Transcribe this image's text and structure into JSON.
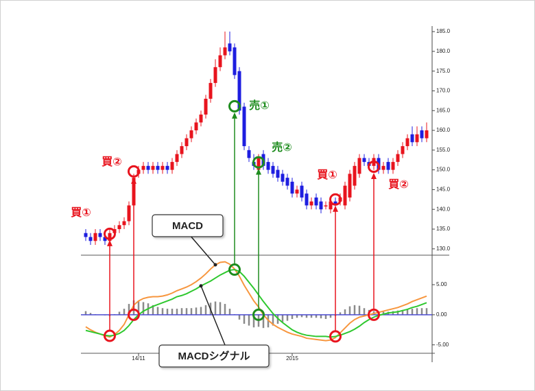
{
  "chart_data": [
    {
      "type": "candlestick",
      "up_color": "#e8141e",
      "down_color": "#1e1ee0",
      "open": [
        134,
        133,
        132,
        134,
        133,
        132,
        134,
        135,
        136,
        137,
        141,
        149,
        150,
        151,
        150,
        151,
        150,
        151,
        150,
        152,
        154,
        156,
        158,
        160,
        162,
        164,
        168,
        172,
        176,
        179,
        182,
        181,
        175,
        166,
        155,
        152,
        150,
        154,
        152,
        151,
        150,
        149,
        148,
        147,
        144,
        146,
        144,
        141,
        143,
        142,
        141,
        140,
        142,
        142,
        141,
        143,
        146,
        149,
        153,
        152,
        151,
        153,
        150,
        152,
        150,
        152,
        154,
        156,
        159,
        157,
        160,
        158
      ],
      "high": [
        135,
        134,
        135,
        135,
        134,
        135,
        136,
        137,
        138,
        142,
        149,
        151,
        152,
        152,
        152,
        152,
        152,
        152,
        153,
        155,
        157,
        159,
        161,
        163,
        165,
        169,
        173,
        178,
        181,
        185,
        185,
        182,
        176,
        167,
        156,
        154,
        154,
        155,
        153,
        152,
        151,
        150,
        149,
        148,
        146,
        147,
        145,
        143,
        144,
        143,
        142,
        143,
        143,
        144,
        147,
        150,
        152,
        154,
        154,
        153,
        154,
        154,
        152,
        153,
        153,
        155,
        157,
        159,
        161,
        161,
        161,
        162
      ],
      "low": [
        132,
        131,
        131,
        132,
        131,
        131,
        133,
        134,
        135,
        136,
        140,
        148,
        149,
        149,
        149,
        149,
        149,
        149,
        149,
        151,
        153,
        155,
        157,
        159,
        161,
        163,
        167,
        171,
        175,
        178,
        179,
        173,
        164,
        155,
        152,
        150,
        149,
        150,
        149,
        148,
        147,
        146,
        145,
        143,
        143,
        142,
        140,
        140,
        140,
        139,
        140,
        139,
        140,
        141,
        140,
        142,
        145,
        148,
        151,
        150,
        150,
        149,
        149,
        149,
        149,
        151,
        153,
        155,
        156,
        156,
        157,
        157
      ],
      "close": [
        133,
        132,
        134,
        133,
        132,
        134,
        135,
        136,
        137,
        141,
        148,
        150,
        151,
        150,
        151,
        150,
        151,
        150,
        152,
        154,
        156,
        158,
        160,
        162,
        164,
        168,
        172,
        176,
        179,
        181,
        180,
        174,
        165,
        156,
        153,
        151,
        153,
        151,
        150,
        149,
        148,
        147,
        146,
        144,
        145,
        143,
        141,
        142,
        141,
        140,
        141,
        142,
        141,
        143,
        146,
        149,
        151,
        153,
        152,
        151,
        153,
        150,
        151,
        150,
        152,
        154,
        156,
        158,
        157,
        159,
        158,
        160
      ],
      "ylim": [
        128.4,
        186.4
      ],
      "yticks": [
        {
          "value": 130,
          "label": "130.0"
        },
        {
          "value": 135,
          "label": "135.0"
        },
        {
          "value": 140,
          "label": "140.0"
        },
        {
          "value": 145,
          "label": "145.0"
        },
        {
          "value": 150,
          "label": "150.0"
        },
        {
          "value": 155,
          "label": "155.0"
        },
        {
          "value": 160,
          "label": "160.0"
        },
        {
          "value": 165,
          "label": "165.0"
        },
        {
          "value": 170,
          "label": "170.0"
        },
        {
          "value": 175,
          "label": "175.0"
        },
        {
          "value": 180,
          "label": "180.0"
        },
        {
          "value": 185,
          "label": "185.0"
        }
      ],
      "annotations": [
        {
          "text": "買①",
          "color": "#e8141e",
          "at": 5,
          "price": 133.8,
          "macd": -3.5
        },
        {
          "text": "買②",
          "color": "#e8141e",
          "at": 10,
          "price": 149.6,
          "macd": 0
        },
        {
          "text": "売①",
          "color": "#1e8c1e",
          "at": 31,
          "price": 166.1,
          "macd": 7.5
        },
        {
          "text": "売②",
          "color": "#1e8c1e",
          "at": 36,
          "price": 151.9,
          "macd": 0
        },
        {
          "text": "買①",
          "color": "#e8141e",
          "at": 52,
          "price": 142.5,
          "macd": -3.6
        },
        {
          "text": "買②",
          "color": "#e8141e",
          "at": 60,
          "price": 150.8,
          "macd": 0
        }
      ]
    },
    {
      "type": "macd",
      "categories": [
        null,
        null,
        null,
        null,
        null,
        null,
        null,
        null,
        null,
        null,
        null,
        "14/11",
        null,
        null,
        null,
        null,
        null,
        null,
        null,
        null,
        null,
        null,
        null,
        null,
        null,
        null,
        null,
        null,
        null,
        null,
        null,
        null,
        null,
        null,
        null,
        null,
        null,
        null,
        null,
        null,
        null,
        null,
        null,
        "2015",
        null,
        null,
        null,
        null,
        null,
        null,
        null,
        null,
        null,
        null,
        null,
        null,
        null,
        null,
        null,
        null,
        null,
        null,
        null,
        null,
        null,
        null,
        null,
        null,
        null,
        null,
        null,
        null
      ],
      "series": [
        {
          "name": "MACD",
          "color": "#f7963e",
          "values": [
            -2.0,
            -2.5,
            -2.9,
            -3.2,
            -3.5,
            -3.7,
            -3.3,
            -2.6,
            -1.6,
            0.0,
            1.6,
            2.3,
            2.7,
            2.9,
            3.0,
            3.0,
            3.1,
            3.3,
            3.6,
            4.0,
            4.3,
            4.6,
            5.0,
            5.5,
            6.1,
            6.8,
            7.6,
            8.3,
            8.7,
            8.8,
            8.4,
            7.6,
            6.4,
            4.9,
            3.6,
            2.3,
            1.3,
            0.0,
            -0.9,
            -1.6,
            -2.1,
            -2.5,
            -2.9,
            -3.2,
            -3.4,
            -3.6,
            -3.9,
            -4.0,
            -4.1,
            -4.2,
            -4.3,
            -4.2,
            -3.8,
            -3.0,
            -2.2,
            -1.4,
            -0.8,
            -0.4,
            -0.2,
            0.0,
            0.2,
            0.4,
            0.6,
            0.8,
            1.0,
            1.2,
            1.5,
            1.8,
            2.2,
            2.5,
            2.8,
            3.1
          ]
        },
        {
          "name": "MACDシグナル",
          "color": "#2ec82e",
          "values": [
            -2.6,
            -2.8,
            -3.0,
            -3.2,
            -3.4,
            -3.5,
            -3.4,
            -3.1,
            -2.6,
            -1.8,
            -0.8,
            0.0,
            0.6,
            1.0,
            1.4,
            1.7,
            2.0,
            2.3,
            2.6,
            3.0,
            3.2,
            3.5,
            3.9,
            4.3,
            4.8,
            5.2,
            5.6,
            6.1,
            6.6,
            7.0,
            7.4,
            7.5,
            7.2,
            6.4,
            5.4,
            4.4,
            3.3,
            2.2,
            1.2,
            0.2,
            -0.6,
            -1.3,
            -1.9,
            -2.5,
            -2.9,
            -3.2,
            -3.4,
            -3.5,
            -3.6,
            -3.6,
            -3.6,
            -3.7,
            -3.6,
            -3.4,
            -3.1,
            -2.8,
            -2.4,
            -1.9,
            -1.3,
            -0.8,
            -0.4,
            -0.1,
            0.1,
            0.3,
            0.4,
            0.5,
            0.7,
            0.9,
            1.2,
            1.4,
            1.7,
            2.0
          ]
        }
      ],
      "histogram": {
        "color": "#8a8a8a",
        "values": [
          0.6,
          0.3,
          0.1,
          0.0,
          -0.1,
          -0.2,
          0.1,
          0.5,
          1.0,
          1.8,
          2.4,
          2.3,
          2.1,
          1.9,
          1.6,
          1.3,
          1.1,
          1.0,
          1.0,
          1.0,
          1.1,
          1.1,
          1.1,
          1.2,
          1.3,
          1.6,
          2.0,
          2.2,
          2.1,
          1.8,
          1.0,
          0.1,
          -0.8,
          -1.5,
          -1.8,
          -2.1,
          -2.0,
          -2.2,
          -2.1,
          -1.8,
          -1.5,
          -1.2,
          -1.0,
          -0.7,
          -0.5,
          -0.4,
          -0.5,
          -0.5,
          -0.5,
          -0.6,
          -0.7,
          -0.5,
          -0.2,
          0.4,
          0.9,
          1.4,
          1.6,
          1.5,
          1.1,
          0.8,
          0.6,
          0.5,
          0.5,
          0.5,
          0.6,
          0.7,
          0.8,
          0.9,
          1.0,
          1.1,
          1.1,
          1.1
        ]
      },
      "zero_line_color": "#4a4ad0",
      "ylim": [
        -6.4,
        9.9
      ],
      "yticks": [
        {
          "value": -5,
          "label": "-5.00"
        },
        {
          "value": 0,
          "label": "0.00"
        },
        {
          "value": 5,
          "label": "5.00"
        }
      ]
    }
  ]
}
